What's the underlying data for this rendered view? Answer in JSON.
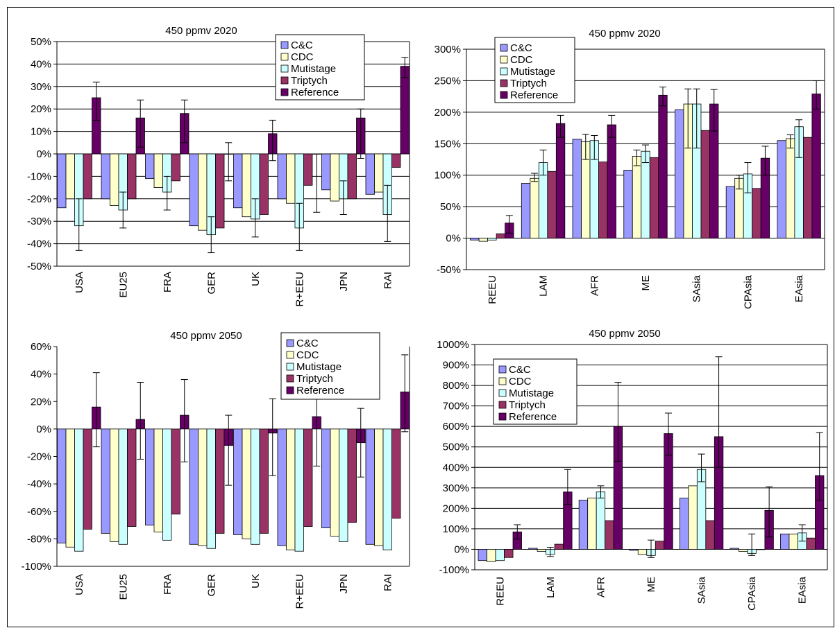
{
  "legend_labels": [
    "C&C",
    "CDC",
    "Mutistage",
    "Triptych",
    "Reference"
  ],
  "colors": {
    "C&C": "#9999ff",
    "CDC": "#ffffcc",
    "Mutistage": "#ccffff",
    "Triptych": "#993366",
    "Reference": "#660066",
    "grid": "#000000"
  },
  "chart_data": [
    {
      "type": "bar",
      "title": "450 ppmv 2020",
      "categories": [
        "USA",
        "EU25",
        "FRA",
        "GER",
        "UK",
        "R+EEU",
        "JPN",
        "RAI"
      ],
      "ylim": [
        -50,
        50
      ],
      "yticks": [
        -50,
        -40,
        -30,
        -20,
        -10,
        0,
        10,
        20,
        30,
        40,
        50
      ],
      "ytick_labels": [
        "-50%",
        "-40%",
        "-30%",
        "-20%",
        "-10%",
        "0%",
        "10%",
        "20%",
        "30%",
        "40%",
        "50%"
      ],
      "grid": true,
      "legend": "top-right",
      "series": [
        {
          "name": "C&C",
          "values": [
            -24,
            -20,
            -11,
            -32,
            -24,
            -20,
            -16,
            -18
          ],
          "error": [
            null,
            null,
            null,
            null,
            null,
            null,
            null,
            null
          ]
        },
        {
          "name": "CDC",
          "values": [
            -20,
            -23,
            -15,
            -34,
            -28,
            -22,
            -21,
            -17
          ],
          "error": [
            null,
            null,
            null,
            null,
            null,
            null,
            null,
            null
          ]
        },
        {
          "name": "Mutistage",
          "values": [
            -32,
            -25,
            -17,
            -36,
            -29,
            -33,
            -20,
            -27
          ],
          "error": [
            [
              -43,
              -20
            ],
            [
              -33,
              -17
            ],
            [
              -25,
              -10
            ],
            [
              -44,
              -28
            ],
            [
              -37,
              -20
            ],
            [
              -43,
              -22
            ],
            [
              -27,
              -12
            ],
            [
              -39,
              -14
            ]
          ]
        },
        {
          "name": "Triptych",
          "values": [
            -20,
            -20,
            -12,
            -33,
            -27,
            -14,
            -20,
            -6
          ],
          "error": [
            null,
            null,
            null,
            null,
            null,
            null,
            null,
            null
          ]
        },
        {
          "name": "Reference",
          "values": [
            25,
            16,
            18,
            0,
            9,
            0,
            16,
            39
          ],
          "error": [
            [
              15,
              32
            ],
            [
              3,
              24
            ],
            [
              5,
              24
            ],
            [
              -12,
              5
            ],
            [
              -3,
              15
            ],
            [
              -26,
              0
            ],
            [
              -2,
              20
            ],
            [
              34,
              43
            ]
          ]
        }
      ]
    },
    {
      "type": "bar",
      "title": "450 ppmv 2020",
      "categories": [
        "REEU",
        "LAM",
        "AFR",
        "ME",
        "SAsia",
        "CPAsia",
        "EAsia"
      ],
      "ylim": [
        -50,
        300
      ],
      "yticks": [
        -50,
        0,
        50,
        100,
        150,
        200,
        250,
        300
      ],
      "ytick_labels": [
        "-50%",
        "0%",
        "50%",
        "100%",
        "150%",
        "200%",
        "250%",
        "300%"
      ],
      "grid": true,
      "legend": "top-left",
      "series": [
        {
          "name": "C&C",
          "values": [
            -3,
            87,
            157,
            108,
            204,
            82,
            155
          ],
          "error": [
            null,
            null,
            null,
            null,
            null,
            null,
            null
          ]
        },
        {
          "name": "CDC",
          "values": [
            -5,
            95,
            153,
            130,
            213,
            95,
            158
          ],
          "error": [
            null,
            [
              90,
              103
            ],
            [
              125,
              165
            ],
            [
              115,
              140
            ],
            [
              143,
              237
            ],
            [
              78,
              100
            ],
            [
              143,
              164
            ]
          ]
        },
        {
          "name": "Mutistage",
          "values": [
            -3,
            120,
            155,
            138,
            213,
            102,
            177
          ],
          "error": [
            null,
            [
              100,
              140
            ],
            [
              125,
              163
            ],
            [
              120,
              148
            ],
            [
              143,
              237
            ],
            [
              72,
              120
            ],
            [
              128,
              188
            ]
          ]
        },
        {
          "name": "Triptych",
          "values": [
            7,
            106,
            121,
            128,
            171,
            79,
            160
          ],
          "error": [
            null,
            null,
            null,
            null,
            null,
            null,
            null
          ]
        },
        {
          "name": "Reference",
          "values": [
            24,
            182,
            180,
            227,
            213,
            127,
            229
          ],
          "error": [
            [
              8,
              36
            ],
            [
              160,
              195
            ],
            [
              160,
              195
            ],
            [
              210,
              240
            ],
            [
              170,
              236
            ],
            [
              100,
              146
            ],
            [
              205,
              250
            ]
          ]
        }
      ]
    },
    {
      "type": "bar",
      "title": "450 ppmv 2050",
      "categories": [
        "USA",
        "EU25",
        "FRA",
        "GER",
        "UK",
        "R+EEU",
        "JPN",
        "RAI"
      ],
      "ylim": [
        -100,
        60
      ],
      "yticks": [
        -100,
        -80,
        -60,
        -40,
        -20,
        0,
        20,
        40,
        60
      ],
      "ytick_labels": [
        "-100%",
        "-80%",
        "-60%",
        "-40%",
        "-20%",
        "0%",
        "20%",
        "40%",
        "60%"
      ],
      "grid": false,
      "legend": "top-right",
      "series": [
        {
          "name": "C&C",
          "values": [
            -83,
            -76,
            -70,
            -84,
            -77,
            -85,
            -72,
            -84
          ],
          "error": [
            null,
            null,
            null,
            null,
            null,
            null,
            null,
            null
          ]
        },
        {
          "name": "CDC",
          "values": [
            -86,
            -82,
            -75,
            -85,
            -80,
            -88,
            -78,
            -85
          ],
          "error": [
            null,
            null,
            null,
            null,
            null,
            null,
            null,
            null
          ]
        },
        {
          "name": "Mutistage",
          "values": [
            -89,
            -84,
            -81,
            -87,
            -84,
            -89,
            -82,
            -88
          ],
          "error": [
            null,
            null,
            null,
            null,
            null,
            null,
            null,
            null
          ]
        },
        {
          "name": "Triptych",
          "values": [
            -73,
            -71,
            -62,
            -76,
            -76,
            -71,
            -68,
            -65
          ],
          "error": [
            null,
            null,
            null,
            null,
            null,
            null,
            null,
            null
          ]
        },
        {
          "name": "Reference",
          "values": [
            16,
            7,
            10,
            -12,
            -3,
            9,
            -10,
            27
          ],
          "error": [
            [
              -13,
              41
            ],
            [
              -22,
              34
            ],
            [
              -24,
              36
            ],
            [
              -41,
              10
            ],
            [
              -34,
              22
            ],
            [
              -27,
              25
            ],
            [
              -35,
              15
            ],
            [
              -2,
              54
            ]
          ]
        }
      ]
    },
    {
      "type": "bar",
      "title": "450 ppmv 2050",
      "categories": [
        "REEU",
        "LAM",
        "AFR",
        "ME",
        "SAsia",
        "CPAsia",
        "EAsia"
      ],
      "ylim": [
        -100,
        1000
      ],
      "yticks": [
        -100,
        0,
        100,
        200,
        300,
        400,
        500,
        600,
        700,
        800,
        900,
        1000
      ],
      "ytick_labels": [
        "-100%",
        "0%",
        "100%",
        "200%",
        "300%",
        "400%",
        "500%",
        "600%",
        "700%",
        "800%",
        "900%",
        "1000%"
      ],
      "grid": true,
      "legend": "top-left",
      "series": [
        {
          "name": "C&C",
          "values": [
            -55,
            5,
            240,
            -5,
            250,
            5,
            75
          ],
          "error": [
            null,
            null,
            null,
            null,
            null,
            null,
            null
          ]
        },
        {
          "name": "CDC",
          "values": [
            -60,
            -10,
            250,
            -25,
            310,
            -10,
            75
          ],
          "error": [
            null,
            null,
            null,
            null,
            null,
            null,
            null
          ]
        },
        {
          "name": "Mutistage",
          "values": [
            -55,
            -25,
            280,
            -30,
            390,
            -20,
            80
          ],
          "error": [
            null,
            [
              -35,
              10
            ],
            [
              250,
              310
            ],
            [
              -40,
              45
            ],
            [
              330,
              465
            ],
            [
              -30,
              75
            ],
            [
              40,
              120
            ]
          ]
        },
        {
          "name": "Triptych",
          "values": [
            -40,
            25,
            140,
            40,
            140,
            0,
            55
          ],
          "error": [
            null,
            null,
            null,
            null,
            null,
            null,
            null
          ]
        },
        {
          "name": "Reference",
          "values": [
            85,
            280,
            600,
            565,
            550,
            190,
            360
          ],
          "error": [
            [
              50,
              120
            ],
            [
              220,
              390
            ],
            [
              430,
              815
            ],
            [
              460,
              665
            ],
            [
              400,
              940
            ],
            [
              60,
              305
            ],
            [
              240,
              570
            ]
          ]
        }
      ]
    }
  ]
}
